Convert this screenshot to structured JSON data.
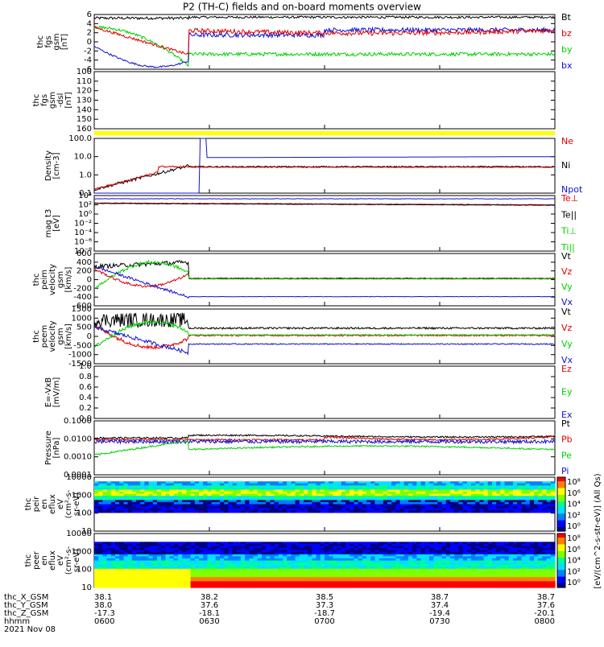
{
  "title": "P2 (TH-C) fields and on-board moments overview",
  "colors": {
    "black": "#000000",
    "red": "#e00000",
    "green": "#00d000",
    "blue": "#1010d0",
    "yellow": "#ffff00"
  },
  "chart_data": {
    "type": "line",
    "title": "P2 (TH-C) fields and on-board moments overview",
    "panels": [
      {
        "id": "fgs",
        "ylabel": [
          "thc",
          "fgs",
          "gsm",
          "[nT]"
        ],
        "yticks": [
          "6",
          "4",
          "2",
          "0",
          "-2",
          "-4",
          "-6"
        ],
        "legend": [
          {
            "name": "Bt",
            "color": "black"
          },
          {
            "name": "bz",
            "color": "red"
          },
          {
            "name": "by",
            "color": "green"
          },
          {
            "name": "bx",
            "color": "blue"
          }
        ]
      },
      {
        "id": "fgs_dsl",
        "ylabel": [
          "thc",
          "fgs",
          "gsm",
          "-dsl",
          "[nT]"
        ],
        "yticks": [
          "100",
          "110",
          "120",
          "130",
          "140",
          "150",
          "160"
        ],
        "legend": []
      },
      {
        "id": "density",
        "ylabel": [
          "Density",
          "[cm-3]"
        ],
        "yticks": [
          "100.0",
          "10.0",
          "1.0",
          "0.1"
        ],
        "legend": [
          {
            "name": "Ne",
            "color": "red"
          },
          {
            "name": "Ni",
            "color": "black"
          },
          {
            "name": "Npot",
            "color": "blue"
          }
        ]
      },
      {
        "id": "temp",
        "ylabel": [
          "mag t3",
          "[eV]"
        ],
        "yticks": [
          "10⁴",
          "10²",
          "10⁰",
          "10⁻²",
          "10⁻⁴",
          "10⁻⁶",
          "10⁻⁸"
        ],
        "legend": [
          {
            "name": "Te⊥",
            "color": "red"
          },
          {
            "name": "Te||",
            "color": "black"
          },
          {
            "name": "Ti⊥",
            "color": "green"
          },
          {
            "name": "Ti||",
            "color": "green"
          }
        ]
      },
      {
        "id": "peim",
        "ylabel": [
          "thc",
          "peim",
          "velocity",
          "gsm",
          "[km/s]"
        ],
        "yticks": [
          "600",
          "400",
          "200",
          "0",
          "-200",
          "-400",
          "-600"
        ],
        "legend": [
          {
            "name": "Vt",
            "color": "black"
          },
          {
            "name": "Vz",
            "color": "red"
          },
          {
            "name": "Vy",
            "color": "green"
          },
          {
            "name": "Vx",
            "color": "blue"
          }
        ]
      },
      {
        "id": "peem",
        "ylabel": [
          "thc",
          "peem",
          "velocity",
          "gsm",
          "[km/s]"
        ],
        "yticks": [
          "1500",
          "1000",
          "500",
          "0",
          "-500",
          "-1000",
          "-1500"
        ],
        "legend": [
          {
            "name": "Vt",
            "color": "black"
          },
          {
            "name": "Vz",
            "color": "red"
          },
          {
            "name": "Vy",
            "color": "green"
          },
          {
            "name": "Vx",
            "color": "blue"
          }
        ]
      },
      {
        "id": "efield",
        "ylabel": [
          "E=-VxB",
          "[mV/m]"
        ],
        "yticks": [
          "1.0",
          "0.8",
          "0.6",
          "0.4",
          "0.2",
          "0.0"
        ],
        "legend": [
          {
            "name": "Ez",
            "color": "red"
          },
          {
            "name": "Ey",
            "color": "green"
          },
          {
            "name": "Ex",
            "color": "blue"
          }
        ]
      },
      {
        "id": "pressure",
        "ylabel": [
          "Pressure",
          "[nPa]"
        ],
        "yticks": [
          "0.1000",
          "0.0100",
          "0.0010",
          "0.0001"
        ],
        "legend": [
          {
            "name": "Pt",
            "color": "black"
          },
          {
            "name": "Pb",
            "color": "red"
          },
          {
            "name": "Pe",
            "color": "green"
          },
          {
            "name": "Pi",
            "color": "blue"
          }
        ]
      },
      {
        "id": "peir",
        "ylabel": [
          "thc",
          "peir",
          "en",
          "eflux",
          "eV",
          "(cm²-s-",
          "sr-eV)"
        ],
        "yticks": [
          "10000",
          "1000",
          "100",
          "10"
        ],
        "legend": []
      },
      {
        "id": "peer",
        "ylabel": [
          "thc",
          "peer",
          "en",
          "eflux",
          "eV",
          "(cm²-s-",
          "sr-eV)"
        ],
        "yticks": [
          "10000",
          "1000",
          "100",
          "10"
        ],
        "legend": []
      }
    ],
    "colorbar": {
      "label": "[eV/(cm^2-s-str-eV)] (All Qs)",
      "upper_ticks": [
        "10⁸",
        "10⁶",
        "10⁴",
        "10²",
        "10⁰"
      ],
      "lower_ticks": [
        "10⁸",
        "10⁶",
        "10⁴",
        "10²",
        "10⁰"
      ]
    },
    "x_axis": {
      "row_labels": [
        "thc_X_GSM",
        "thc_Y_GSM",
        "thc_Z_GSM",
        "hhmm",
        "2021 Nov 08"
      ],
      "ticks": [
        {
          "x_gsm": "38.1",
          "y_gsm": "38.0",
          "z_gsm": "-17.3",
          "hhmm": "0600"
        },
        {
          "x_gsm": "38.2",
          "y_gsm": "37.6",
          "z_gsm": "-18.1",
          "hhmm": "0630"
        },
        {
          "x_gsm": "38.5",
          "y_gsm": "37.3",
          "z_gsm": "-18.7",
          "hhmm": "0700"
        },
        {
          "x_gsm": "38.7",
          "y_gsm": "37.4",
          "z_gsm": "-19.4",
          "hhmm": "0730"
        },
        {
          "x_gsm": "38.7",
          "y_gsm": "37.6",
          "z_gsm": "-20.1",
          "hhmm": "0800"
        }
      ]
    }
  }
}
